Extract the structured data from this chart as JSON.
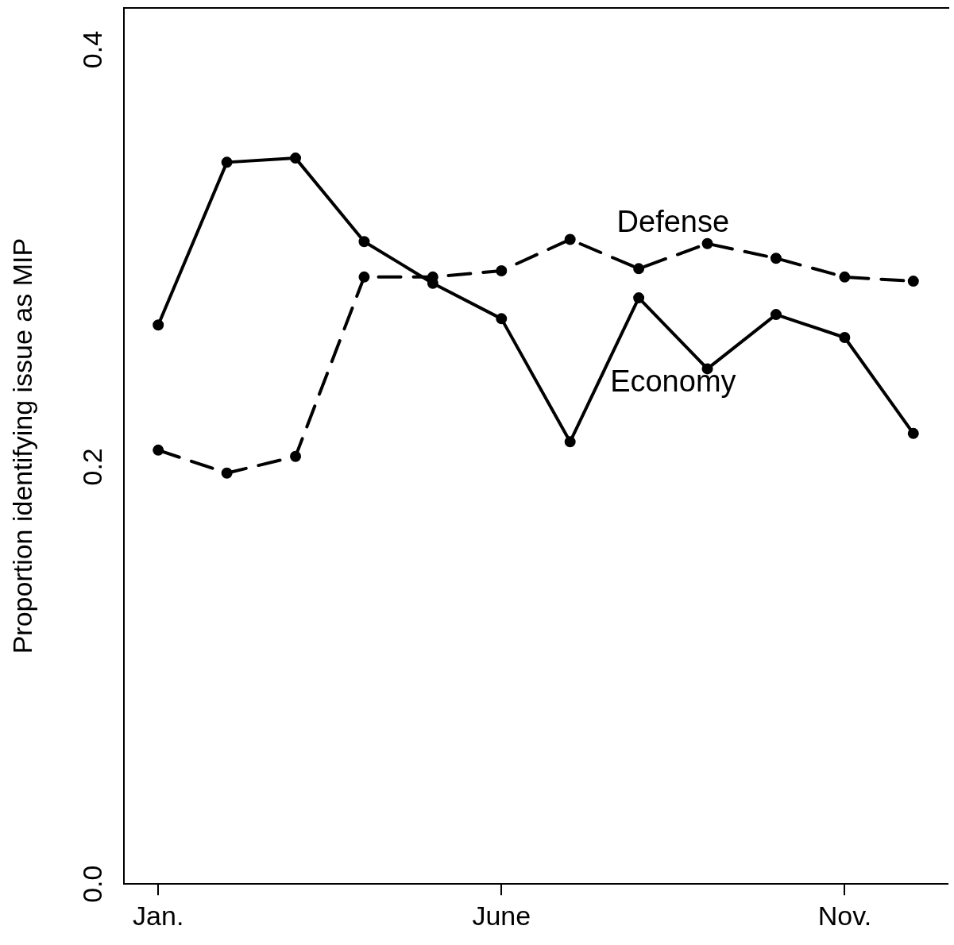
{
  "chart_data": {
    "type": "line",
    "ylabel": "Proportion identifying issue as MIP",
    "categories": [
      "Jan.",
      null,
      null,
      null,
      null,
      "June",
      null,
      null,
      null,
      null,
      "Nov.",
      null
    ],
    "ylim": [
      0,
      0.42
    ],
    "yticks": [
      {
        "value": 0,
        "label": "0.0"
      },
      {
        "value": 0.2,
        "label": "0.2"
      },
      {
        "value": 0.4,
        "label": "0.4"
      }
    ],
    "grid": false,
    "legend": false,
    "marker": "circle",
    "series": [
      {
        "name": "Economy",
        "color": "#000000",
        "line_style": "solid",
        "values": [
          0.268,
          0.346,
          0.348,
          0.308,
          0.288,
          0.271,
          0.212,
          0.281,
          0.247,
          0.273,
          0.262,
          0.216
        ]
      },
      {
        "name": "Defense",
        "color": "#000000",
        "line_style": "dashed",
        "values": [
          0.208,
          0.197,
          0.205,
          0.291,
          0.291,
          0.294,
          0.309,
          0.295,
          0.307,
          0.3,
          0.291,
          0.289
        ]
      }
    ]
  }
}
